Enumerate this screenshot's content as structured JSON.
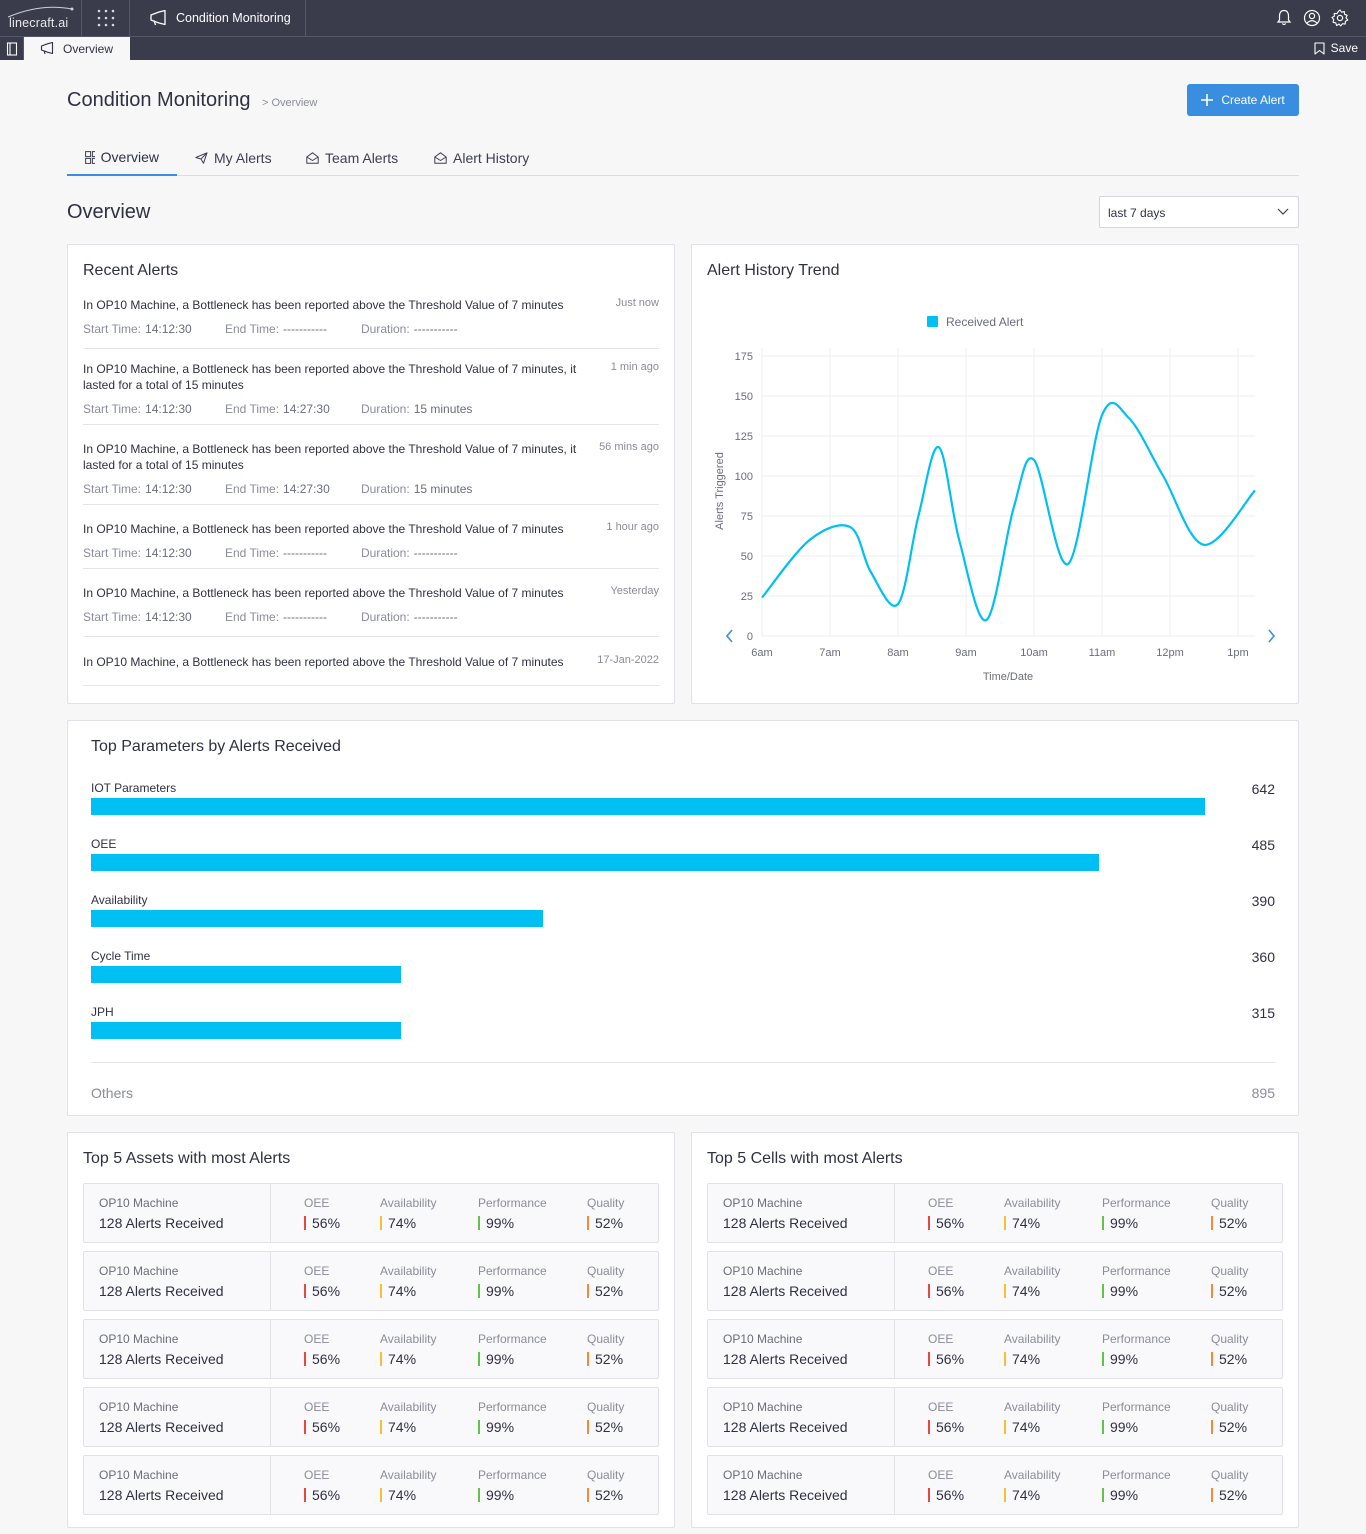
{
  "topbar": {
    "logo": "linecraft.ai",
    "module": "Condition Monitoring"
  },
  "subbar": {
    "tab": "Overview",
    "save": "Save"
  },
  "header": {
    "title": "Condition Monitoring",
    "breadcrumb": "> Overview",
    "create_alert": "Create Alert"
  },
  "tabs": [
    {
      "label": "Overview",
      "icon": "grid-icon"
    },
    {
      "label": "My Alerts",
      "icon": "send-icon"
    },
    {
      "label": "Team Alerts",
      "icon": "inbox-icon"
    },
    {
      "label": "Alert History",
      "icon": "inbox-icon"
    }
  ],
  "overview": {
    "title": "Overview",
    "period": "last 7 days"
  },
  "recent_alerts": {
    "title": "Recent Alerts",
    "start_label": "Start Time:",
    "end_label": "End Time:",
    "duration_label": "Duration:",
    "items": [
      {
        "message": "In OP10 Machine, a Bottleneck has been reported above the Threshold Value of 7 minutes",
        "time": "Just now",
        "start": "14:12:30",
        "end": "-----------",
        "duration": "-----------"
      },
      {
        "message": "In OP10 Machine, a Bottleneck has been reported above the Threshold Value of 7 minutes, it lasted for a total of 15 minutes",
        "time": "1 min ago",
        "start": "14:12:30",
        "end": "14:27:30",
        "duration": "15 minutes"
      },
      {
        "message": "In OP10 Machine, a Bottleneck has been reported above the Threshold Value of 7 minutes, it lasted for a total of 15 minutes",
        "time": "56 mins ago",
        "start": "14:12:30",
        "end": "14:27:30",
        "duration": "15 minutes"
      },
      {
        "message": "In OP10 Machine, a Bottleneck has been reported above the Threshold Value of 7 minutes",
        "time": "1 hour ago",
        "start": "14:12:30",
        "end": "-----------",
        "duration": "-----------"
      },
      {
        "message": "In OP10 Machine, a Bottleneck has been reported above the Threshold Value of 7 minutes",
        "time": "Yesterday",
        "start": "14:12:30",
        "end": "-----------",
        "duration": "-----------"
      },
      {
        "message": "In OP10 Machine, a Bottleneck has been reported above the Threshold Value of 7 minutes",
        "time": "17-Jan-2022"
      }
    ]
  },
  "trend": {
    "title": "Alert History Trend",
    "chart_data": {
      "type": "line",
      "title": "",
      "xlabel": "Time/Date",
      "ylabel": "Alerts Triggered",
      "ylim": [
        0,
        175
      ],
      "yticks": [
        0,
        25,
        50,
        75,
        100,
        125,
        150,
        175
      ],
      "xticks": [
        "6am",
        "7am",
        "8am",
        "9am",
        "10am",
        "11am",
        "12pm",
        "1pm"
      ],
      "legend": "top-center",
      "grid": true,
      "color": "#00c0f3",
      "series": [
        {
          "name": "Received Alert",
          "x": [
            6.0,
            6.7,
            7.3,
            7.6,
            8.0,
            8.3,
            8.6,
            8.9,
            9.3,
            9.7,
            10.0,
            10.5,
            11.0,
            11.4,
            11.9,
            12.5,
            13.25
          ],
          "y": [
            24,
            60,
            68,
            40,
            20,
            75,
            118,
            60,
            10,
            80,
            110,
            45,
            138,
            136,
            100,
            57,
            91
          ]
        }
      ]
    }
  },
  "top_params": {
    "title": "Top Parameters by Alerts Received",
    "items": [
      {
        "label": "IOT Parameters",
        "value": "642",
        "fill": 1.0
      },
      {
        "label": "OEE",
        "value": "485",
        "fill": 0.905
      },
      {
        "label": "Availability",
        "value": "390",
        "fill": 0.406
      },
      {
        "label": "Cycle Time",
        "value": "360",
        "fill": 0.278
      },
      {
        "label": "JPH",
        "value": "315",
        "fill": 0.278
      }
    ],
    "others_label": "Others",
    "others_value": "895"
  },
  "metric_colors": {
    "oee": "#e5483f",
    "availability": "#f2c230",
    "performance": "#5fc54a",
    "quality": "#f28a38"
  },
  "assets": {
    "title": "Top 5 Assets with most Alerts",
    "rows": [
      {
        "name": "OP10 Machine",
        "alerts": "128 Alerts Received",
        "oee": "56%",
        "availability": "74%",
        "performance": "99%",
        "quality": "52%"
      },
      {
        "name": "OP10 Machine",
        "alerts": "128 Alerts Received",
        "oee": "56%",
        "availability": "74%",
        "performance": "99%",
        "quality": "52%"
      },
      {
        "name": "OP10 Machine",
        "alerts": "128 Alerts Received",
        "oee": "56%",
        "availability": "74%",
        "performance": "99%",
        "quality": "52%"
      },
      {
        "name": "OP10 Machine",
        "alerts": "128 Alerts Received",
        "oee": "56%",
        "availability": "74%",
        "performance": "99%",
        "quality": "52%"
      },
      {
        "name": "OP10 Machine",
        "alerts": "128 Alerts Received",
        "oee": "56%",
        "availability": "74%",
        "performance": "99%",
        "quality": "52%"
      }
    ]
  },
  "cells": {
    "title": "Top 5 Cells with most Alerts",
    "rows": [
      {
        "name": "OP10 Machine",
        "alerts": "128 Alerts Received",
        "oee": "56%",
        "availability": "74%",
        "performance": "99%",
        "quality": "52%"
      },
      {
        "name": "OP10 Machine",
        "alerts": "128 Alerts Received",
        "oee": "56%",
        "availability": "74%",
        "performance": "99%",
        "quality": "52%"
      },
      {
        "name": "OP10 Machine",
        "alerts": "128 Alerts Received",
        "oee": "56%",
        "availability": "74%",
        "performance": "99%",
        "quality": "52%"
      },
      {
        "name": "OP10 Machine",
        "alerts": "128 Alerts Received",
        "oee": "56%",
        "availability": "74%",
        "performance": "99%",
        "quality": "52%"
      },
      {
        "name": "OP10 Machine",
        "alerts": "128 Alerts Received",
        "oee": "56%",
        "availability": "74%",
        "performance": "99%",
        "quality": "52%"
      }
    ]
  },
  "metric_labels": {
    "oee": "OEE",
    "availability": "Availability",
    "performance": "Performance",
    "quality": "Quality"
  }
}
